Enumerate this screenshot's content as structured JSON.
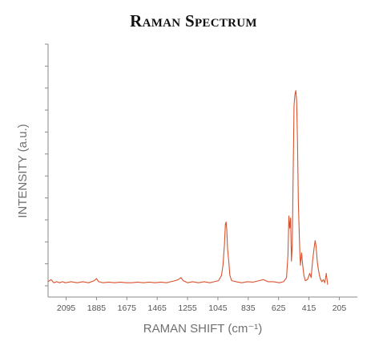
{
  "chart_data": {
    "type": "line",
    "title": "Raman Spectrum",
    "xlabel": "RAMAN SHIFT (cm⁻¹)",
    "ylabel": "INTENSITY (a.u.)",
    "x_reversed": true,
    "xlim": [
      2220,
      80
    ],
    "ylim": [
      0,
      100
    ],
    "x_ticks": [
      2095,
      1885,
      1675,
      1465,
      1255,
      1045,
      835,
      625,
      415,
      205
    ],
    "y_tick_count": 12,
    "grid": false,
    "series": [
      {
        "color": "#d9532f",
        "points": [
          [
            2220,
            2
          ],
          [
            2200,
            3
          ],
          [
            2180,
            1.5
          ],
          [
            2160,
            2
          ],
          [
            2140,
            1.5
          ],
          [
            2120,
            2
          ],
          [
            2100,
            1.5
          ],
          [
            2060,
            2
          ],
          [
            2020,
            1.5
          ],
          [
            1980,
            2
          ],
          [
            1940,
            1.5
          ],
          [
            1900,
            2.5
          ],
          [
            1885,
            3.5
          ],
          [
            1870,
            2
          ],
          [
            1840,
            1.5
          ],
          [
            1800,
            1.8
          ],
          [
            1760,
            1.5
          ],
          [
            1720,
            1.8
          ],
          [
            1680,
            1.5
          ],
          [
            1640,
            1.5
          ],
          [
            1600,
            1.8
          ],
          [
            1560,
            1.5
          ],
          [
            1520,
            1.8
          ],
          [
            1480,
            1.5
          ],
          [
            1440,
            1.8
          ],
          [
            1400,
            1.5
          ],
          [
            1370,
            2
          ],
          [
            1340,
            2.5
          ],
          [
            1320,
            3
          ],
          [
            1300,
            4
          ],
          [
            1285,
            2.5
          ],
          [
            1270,
            2
          ],
          [
            1255,
            1.5
          ],
          [
            1220,
            2
          ],
          [
            1180,
            1.5
          ],
          [
            1140,
            2
          ],
          [
            1100,
            1.5
          ],
          [
            1070,
            2
          ],
          [
            1040,
            2.5
          ],
          [
            1020,
            5
          ],
          [
            1010,
            10
          ],
          [
            1000,
            20
          ],
          [
            993,
            30
          ],
          [
            988,
            31
          ],
          [
            983,
            27
          ],
          [
            978,
            18
          ],
          [
            970,
            12
          ],
          [
            962,
            5
          ],
          [
            950,
            2.5
          ],
          [
            920,
            2
          ],
          [
            880,
            1.5
          ],
          [
            840,
            2
          ],
          [
            800,
            1.8
          ],
          [
            760,
            2.5
          ],
          [
            730,
            3
          ],
          [
            700,
            2
          ],
          [
            660,
            2
          ],
          [
            620,
            1.5
          ],
          [
            590,
            2
          ],
          [
            570,
            4
          ],
          [
            560,
            15
          ],
          [
            554,
            34
          ],
          [
            548,
            28
          ],
          [
            542,
            33
          ],
          [
            536,
            12
          ],
          [
            530,
            20
          ],
          [
            524,
            55
          ],
          [
            518,
            88
          ],
          [
            512,
            93
          ],
          [
            506,
            95
          ],
          [
            500,
            90
          ],
          [
            494,
            70
          ],
          [
            488,
            40
          ],
          [
            480,
            20
          ],
          [
            474,
            10
          ],
          [
            466,
            16
          ],
          [
            460,
            11
          ],
          [
            450,
            5
          ],
          [
            440,
            2.5
          ],
          [
            425,
            3
          ],
          [
            410,
            6
          ],
          [
            400,
            4
          ],
          [
            390,
            12
          ],
          [
            380,
            18
          ],
          [
            372,
            22
          ],
          [
            365,
            19
          ],
          [
            358,
            12
          ],
          [
            350,
            8
          ],
          [
            342,
            5
          ],
          [
            334,
            3
          ],
          [
            325,
            2
          ],
          [
            315,
            3
          ],
          [
            305,
            1.5
          ],
          [
            295,
            6
          ],
          [
            285,
            0.5
          ]
        ]
      }
    ]
  }
}
